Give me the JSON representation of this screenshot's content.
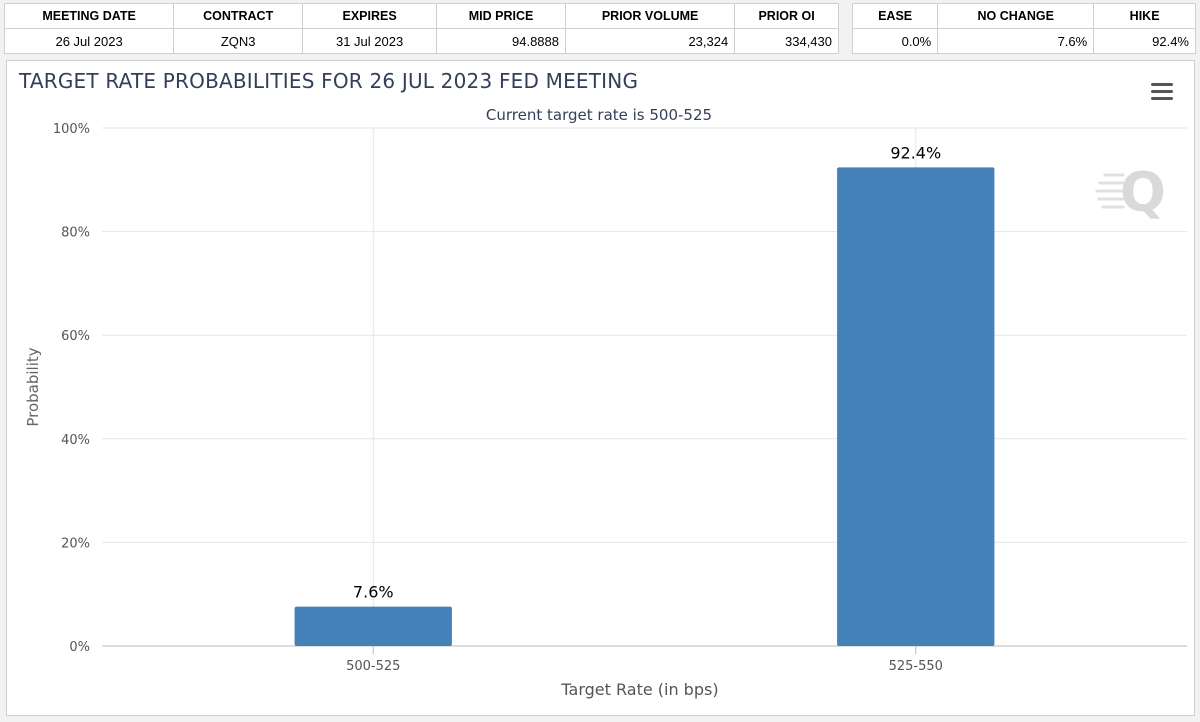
{
  "meeting_table": {
    "headers": [
      "MEETING DATE",
      "CONTRACT",
      "EXPIRES",
      "MID PRICE",
      "PRIOR VOLUME",
      "PRIOR OI"
    ],
    "values": [
      "26 Jul 2023",
      "ZQN3",
      "31 Jul 2023",
      "94.8888",
      "23,324",
      "334,430"
    ]
  },
  "probability_table": {
    "headers": [
      "EASE",
      "NO CHANGE",
      "HIKE"
    ],
    "values": [
      "0.0%",
      "7.6%",
      "92.4%"
    ]
  },
  "menu_icon": "hamburger-menu-icon",
  "watermark": "Q",
  "colors": {
    "bar": "#4381b8",
    "title": "#333f5a",
    "grid": "#e6e6e6"
  },
  "chart_data": {
    "type": "bar",
    "title": "TARGET RATE PROBABILITIES FOR 26 JUL 2023 FED MEETING",
    "subtitle": "Current target rate is 500-525",
    "categories": [
      "500-525",
      "525-550"
    ],
    "values": [
      7.6,
      92.4
    ],
    "data_labels": [
      "7.6%",
      "92.4%"
    ],
    "xlabel": "Target Rate (in bps)",
    "ylabel": "Probability",
    "ylim": [
      0,
      100
    ],
    "yticks": [
      0,
      20,
      40,
      60,
      80,
      100
    ],
    "ytick_labels": [
      "0%",
      "20%",
      "40%",
      "60%",
      "80%",
      "100%"
    ],
    "grid": true
  }
}
